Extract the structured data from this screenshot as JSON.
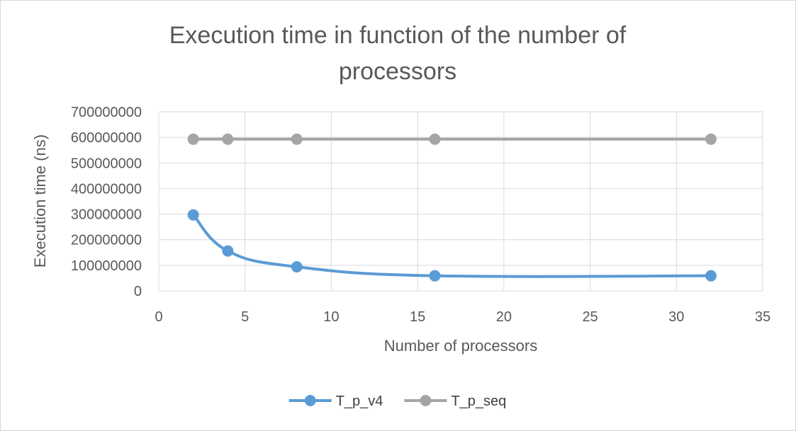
{
  "chart_data": {
    "type": "line",
    "title": "Execution time in function of the number of processors",
    "title_lines": [
      "Execution time in function of the number of",
      "processors"
    ],
    "xlabel": "Number of processors",
    "ylabel": "Execution time (ns)",
    "xlim": [
      0,
      35
    ],
    "ylim": [
      0,
      700000000
    ],
    "x_ticks": [
      0,
      5,
      10,
      15,
      20,
      25,
      30,
      35
    ],
    "y_ticks": [
      0,
      100000000,
      200000000,
      300000000,
      400000000,
      500000000,
      600000000,
      700000000
    ],
    "grid": true,
    "legend_position": "bottom",
    "series": [
      {
        "name": "T_p_v4",
        "color": "#5b9bd5",
        "smooth": true,
        "points": [
          {
            "x": 2,
            "y": 297000000
          },
          {
            "x": 4,
            "y": 156000000
          },
          {
            "x": 8,
            "y": 94000000
          },
          {
            "x": 16,
            "y": 59000000
          },
          {
            "x": 32,
            "y": 59000000
          }
        ]
      },
      {
        "name": "T_p_seq",
        "color": "#a5a5a5",
        "smooth": false,
        "points": [
          {
            "x": 2,
            "y": 593000000
          },
          {
            "x": 4,
            "y": 593000000
          },
          {
            "x": 8,
            "y": 593000000
          },
          {
            "x": 16,
            "y": 593000000
          },
          {
            "x": 32,
            "y": 593000000
          }
        ]
      }
    ]
  },
  "colors": {
    "grid": "#d9d9d9",
    "text": "#595959"
  }
}
